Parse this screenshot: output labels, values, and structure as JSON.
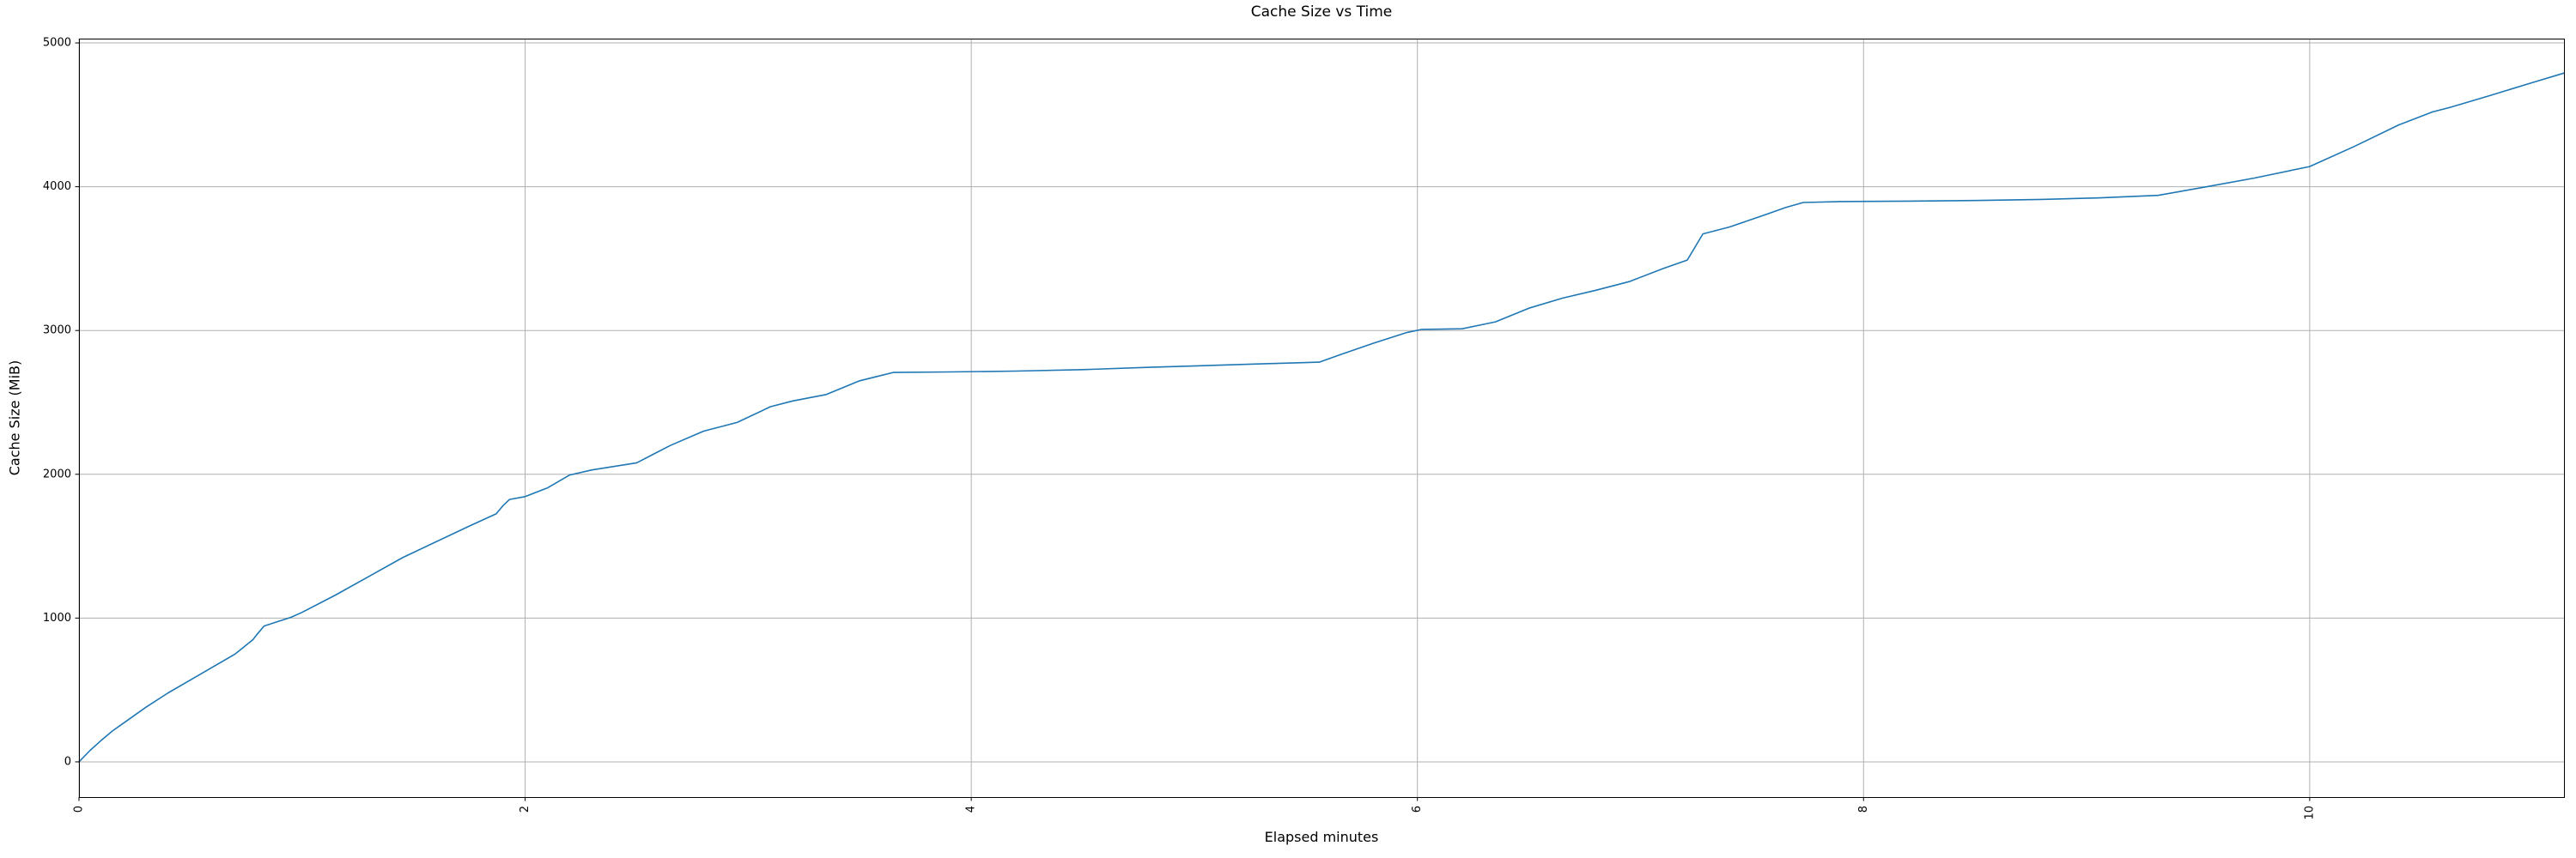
{
  "figure": {
    "title": "Cache Size vs Time",
    "xlabel": "Elapsed minutes",
    "ylabel": "Cache Size (MiB)"
  },
  "chart_data": {
    "type": "line",
    "title": "Cache Size vs Time",
    "xlabel": "Elapsed minutes",
    "ylabel": "Cache Size (MiB)",
    "xlim": [
      0,
      11.14
    ],
    "ylim": [
      -245,
      5030
    ],
    "x_ticks": [
      0,
      2,
      4,
      6,
      8,
      10
    ],
    "y_ticks": [
      0,
      1000,
      2000,
      3000,
      4000,
      5000
    ],
    "x_tick_rotation_deg": -90,
    "grid": true,
    "legend_position": "none",
    "line_color": "#1f77b4",
    "grid_color": "#b0b0b0",
    "spine_color": "#000000",
    "series": [
      {
        "name": "cache-size",
        "points": [
          [
            0,
            0
          ],
          [
            0.05,
            80
          ],
          [
            0.1,
            150
          ],
          [
            0.15,
            215
          ],
          [
            0.2,
            270
          ],
          [
            0.3,
            380
          ],
          [
            0.4,
            480
          ],
          [
            0.5,
            570
          ],
          [
            0.6,
            660
          ],
          [
            0.7,
            750
          ],
          [
            0.78,
            850
          ],
          [
            0.8,
            890
          ],
          [
            0.83,
            945
          ],
          [
            0.88,
            970
          ],
          [
            0.95,
            1005
          ],
          [
            1.0,
            1040
          ],
          [
            1.15,
            1160
          ],
          [
            1.3,
            1290
          ],
          [
            1.45,
            1420
          ],
          [
            1.6,
            1530
          ],
          [
            1.75,
            1640
          ],
          [
            1.87,
            1725
          ],
          [
            1.9,
            1780
          ],
          [
            1.93,
            1825
          ],
          [
            2.0,
            1845
          ],
          [
            2.1,
            1905
          ],
          [
            2.2,
            1995
          ],
          [
            2.3,
            2030
          ],
          [
            2.4,
            2055
          ],
          [
            2.5,
            2080
          ],
          [
            2.65,
            2200
          ],
          [
            2.8,
            2300
          ],
          [
            2.95,
            2360
          ],
          [
            3.1,
            2470
          ],
          [
            3.2,
            2510
          ],
          [
            3.35,
            2555
          ],
          [
            3.5,
            2650
          ],
          [
            3.65,
            2708
          ],
          [
            3.9,
            2712
          ],
          [
            4.2,
            2718
          ],
          [
            4.5,
            2728
          ],
          [
            4.8,
            2744
          ],
          [
            5.1,
            2758
          ],
          [
            5.3,
            2768
          ],
          [
            5.56,
            2780
          ],
          [
            5.65,
            2830
          ],
          [
            5.8,
            2910
          ],
          [
            5.95,
            2985
          ],
          [
            6.02,
            3008
          ],
          [
            6.2,
            3012
          ],
          [
            6.35,
            3060
          ],
          [
            6.5,
            3155
          ],
          [
            6.65,
            3225
          ],
          [
            6.8,
            3280
          ],
          [
            6.95,
            3340
          ],
          [
            7.1,
            3430
          ],
          [
            7.21,
            3490
          ],
          [
            7.28,
            3672
          ],
          [
            7.4,
            3720
          ],
          [
            7.55,
            3800
          ],
          [
            7.65,
            3855
          ],
          [
            7.73,
            3890
          ],
          [
            7.9,
            3897
          ],
          [
            8.2,
            3900
          ],
          [
            8.5,
            3904
          ],
          [
            8.8,
            3912
          ],
          [
            9.05,
            3922
          ],
          [
            9.32,
            3940
          ],
          [
            9.54,
            4000
          ],
          [
            9.75,
            4060
          ],
          [
            10.0,
            4140
          ],
          [
            10.2,
            4280
          ],
          [
            10.4,
            4430
          ],
          [
            10.55,
            4520
          ],
          [
            10.63,
            4552
          ],
          [
            10.8,
            4630
          ],
          [
            11.0,
            4725
          ],
          [
            11.14,
            4790
          ]
        ]
      }
    ]
  }
}
